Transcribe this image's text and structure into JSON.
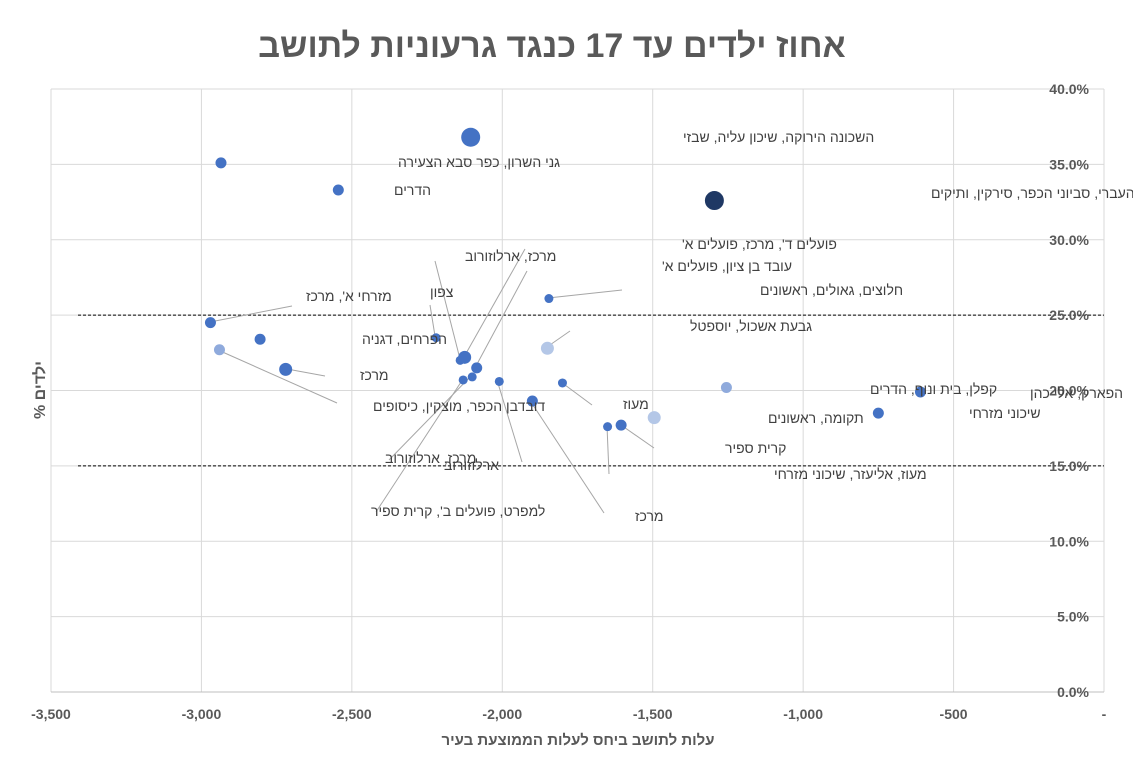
{
  "chart_data": {
    "type": "scatter",
    "title": "אחוז ילדים עד 17 כנגד גרעוניות לתושב",
    "xlabel": "עלות לתושב ביחס לעלות הממוצעת בעיר",
    "ylabel": "% ילדים",
    "xlim": [
      -3500,
      0
    ],
    "ylim": [
      0,
      0.4
    ],
    "x_ticks": [
      {
        "value": -3500,
        "label": "-3,500"
      },
      {
        "value": -3000,
        "label": "-3,000"
      },
      {
        "value": -2500,
        "label": "-2,500"
      },
      {
        "value": -2000,
        "label": "-2,000"
      },
      {
        "value": -1500,
        "label": "-1,500"
      },
      {
        "value": -1000,
        "label": "-1,000"
      },
      {
        "value": -500,
        "label": "-500"
      },
      {
        "value": 0,
        "label": "-"
      }
    ],
    "y_ticks": [
      {
        "value": 0.0,
        "label": "0.0%"
      },
      {
        "value": 0.05,
        "label": "5.0%"
      },
      {
        "value": 0.1,
        "label": "10.0%"
      },
      {
        "value": 0.15,
        "label": "15.0%"
      },
      {
        "value": 0.2,
        "label": "20.0%"
      },
      {
        "value": 0.25,
        "label": "25.0%"
      },
      {
        "value": 0.3,
        "label": "30.0%"
      },
      {
        "value": 0.35,
        "label": "35.0%"
      },
      {
        "value": 0.4,
        "label": "40.0%"
      }
    ],
    "reference_lines": [
      {
        "y": 0.25,
        "style": "dashed"
      },
      {
        "y": 0.15,
        "style": "dashed"
      }
    ],
    "colors": {
      "dark": "#1f3864",
      "medium": "#4472c4",
      "light": "#b4c7e7",
      "muted": "#8faadc",
      "axis_text": "#595959",
      "grid": "#d9d9d9",
      "leader": "#a6a6a6"
    },
    "points": [
      {
        "x": -2105,
        "y": 0.368,
        "label": "השכונה הירוקה, שיכון עליה, שבזי",
        "size": "xl",
        "color": "medium"
      },
      {
        "x": -2935,
        "y": 0.351,
        "label": "גני השרון, כפר סבא הצעירה",
        "size": "m",
        "color": "medium"
      },
      {
        "x": -2545,
        "y": 0.333,
        "label": "הדרים",
        "size": "m",
        "color": "medium"
      },
      {
        "x": -1295,
        "y": 0.326,
        "label": "הזמר העברי, סביוני הכפר, סירקין, ותיקים",
        "size": "xl",
        "color": "dark"
      },
      {
        "x": -1845,
        "y": 0.261,
        "label": "חלוצים, גאולים, ראשונים",
        "size": "s",
        "color": "medium"
      },
      {
        "x": -2970,
        "y": 0.245,
        "label": "מזרחי א', מרכז",
        "size": "m",
        "color": "medium"
      },
      {
        "x": -2805,
        "y": 0.234,
        "label": "הפרחים, דגניה",
        "size": "m",
        "color": "medium"
      },
      {
        "x": -2220,
        "y": 0.235,
        "label": "צפון",
        "size": "s",
        "color": "medium"
      },
      {
        "x": -1850,
        "y": 0.228,
        "label": "גבעת אשכול, יוספטל",
        "size": "l",
        "color": "light"
      },
      {
        "x": -2940,
        "y": 0.227,
        "label": "דובדבן הכפר, מוצקין, כיסופים",
        "size": "m",
        "color": "muted"
      },
      {
        "x": -2125,
        "y": 0.222,
        "label": "פועלים ד', מרכז, פועלים א'",
        "size": "l",
        "color": "medium"
      },
      {
        "x": -2140,
        "y": 0.22,
        "label": "מרכז, ארלוזורוב",
        "size": "s",
        "color": "medium"
      },
      {
        "x": -2085,
        "y": 0.215,
        "label": "עובד בן ציון, פועלים א'",
        "size": "m",
        "color": "medium"
      },
      {
        "x": -2720,
        "y": 0.214,
        "label": "מרכז",
        "size": "l",
        "color": "medium"
      },
      {
        "x": -2100,
        "y": 0.209,
        "label": "מרכז, ארלוזורוב",
        "size": "s",
        "color": "medium"
      },
      {
        "x": -2130,
        "y": 0.207,
        "label": "למפרט, פועלים ב', קרית ספיר",
        "size": "s",
        "color": "medium"
      },
      {
        "x": -2010,
        "y": 0.206,
        "label": "ארלוזורוב",
        "size": "s",
        "color": "medium"
      },
      {
        "x": -1800,
        "y": 0.205,
        "label": "מעוז",
        "size": "s",
        "color": "medium"
      },
      {
        "x": -1255,
        "y": 0.202,
        "label": "קפלן, בית ונוף, הדרים",
        "size": "m",
        "color": "muted"
      },
      {
        "x": -610,
        "y": 0.199,
        "label": "הפארק, אלי כהן",
        "size": "m",
        "color": "medium"
      },
      {
        "x": -1900,
        "y": 0.193,
        "label": "מרכז",
        "size": "m",
        "color": "medium"
      },
      {
        "x": -750,
        "y": 0.185,
        "label": "שיכוני מזרחי",
        "size": "m",
        "color": "medium"
      },
      {
        "x": -1495,
        "y": 0.182,
        "label": "תקומה, ראשונים",
        "size": "l",
        "color": "light"
      },
      {
        "x": -1605,
        "y": 0.177,
        "label": "קרית ספיר",
        "size": "m",
        "color": "medium"
      },
      {
        "x": -1650,
        "y": 0.176,
        "label": "מעוז, אליעזר, שיכוני מזרחי",
        "size": "s",
        "color": "medium"
      }
    ]
  }
}
